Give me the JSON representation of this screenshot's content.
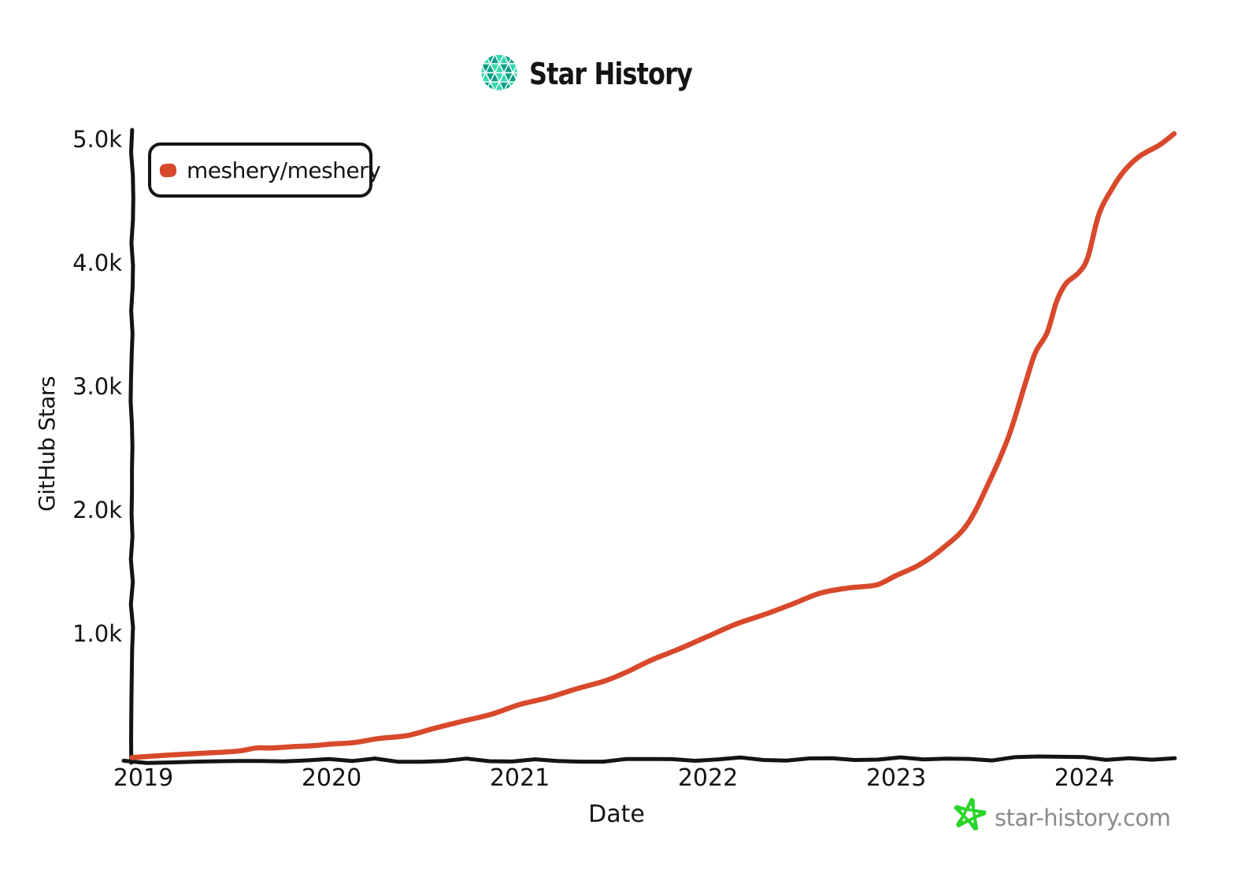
{
  "header": {
    "title": "Star History"
  },
  "legend": {
    "items": [
      {
        "label": "meshery/meshery",
        "color": "#d8492b"
      }
    ]
  },
  "watermark": {
    "text": "star-history.com"
  },
  "colors": {
    "series_red": "#d8492b",
    "axis_black": "#141414",
    "logo_teal_light": "#35d9ae",
    "logo_teal_dark": "#0c9f85",
    "watermark_star_green": "#2bd42b",
    "watermark_text_gray": "#8b8b8b"
  },
  "chart_data": {
    "type": "line",
    "title": "Star History",
    "xlabel": "Date",
    "ylabel": "GitHub Stars",
    "x_ticks": [
      "2019",
      "2020",
      "2021",
      "2022",
      "2023",
      "2024"
    ],
    "y_ticks": [
      "5.0k",
      "4.0k",
      "3.0k",
      "2.0k",
      "1.0k"
    ],
    "x_range_years": [
      2018.94,
      2024.55
    ],
    "ylim": [
      0,
      5100
    ],
    "grid": false,
    "legend_position": "top-left",
    "style": "xkcd-hand-drawn",
    "series": [
      {
        "name": "meshery/meshery",
        "color": "#d8492b",
        "points_year_stars": [
          [
            2018.94,
            5
          ],
          [
            2019.12,
            18
          ],
          [
            2019.3,
            38
          ],
          [
            2019.5,
            62
          ],
          [
            2019.6,
            80
          ],
          [
            2019.68,
            86
          ],
          [
            2019.78,
            84
          ],
          [
            2019.9,
            95
          ],
          [
            2020.0,
            108
          ],
          [
            2020.12,
            125
          ],
          [
            2020.25,
            150
          ],
          [
            2020.4,
            190
          ],
          [
            2020.55,
            240
          ],
          [
            2020.7,
            295
          ],
          [
            2020.85,
            355
          ],
          [
            2021.0,
            430
          ],
          [
            2021.15,
            495
          ],
          [
            2021.3,
            555
          ],
          [
            2021.45,
            620
          ],
          [
            2021.57,
            700
          ],
          [
            2021.7,
            790
          ],
          [
            2021.85,
            890
          ],
          [
            2022.0,
            990
          ],
          [
            2022.15,
            1080
          ],
          [
            2022.3,
            1160
          ],
          [
            2022.45,
            1250
          ],
          [
            2022.6,
            1330
          ],
          [
            2022.75,
            1370
          ],
          [
            2022.9,
            1400
          ],
          [
            2023.0,
            1480
          ],
          [
            2023.12,
            1560
          ],
          [
            2023.25,
            1700
          ],
          [
            2023.38,
            1900
          ],
          [
            2023.5,
            2250
          ],
          [
            2023.6,
            2600
          ],
          [
            2023.68,
            3000
          ],
          [
            2023.74,
            3280
          ],
          [
            2023.8,
            3450
          ],
          [
            2023.85,
            3700
          ],
          [
            2023.9,
            3840
          ],
          [
            2023.97,
            3920
          ],
          [
            2024.02,
            4050
          ],
          [
            2024.08,
            4400
          ],
          [
            2024.15,
            4620
          ],
          [
            2024.22,
            4770
          ],
          [
            2024.3,
            4870
          ],
          [
            2024.4,
            4960
          ],
          [
            2024.48,
            5060
          ]
        ]
      }
    ]
  }
}
